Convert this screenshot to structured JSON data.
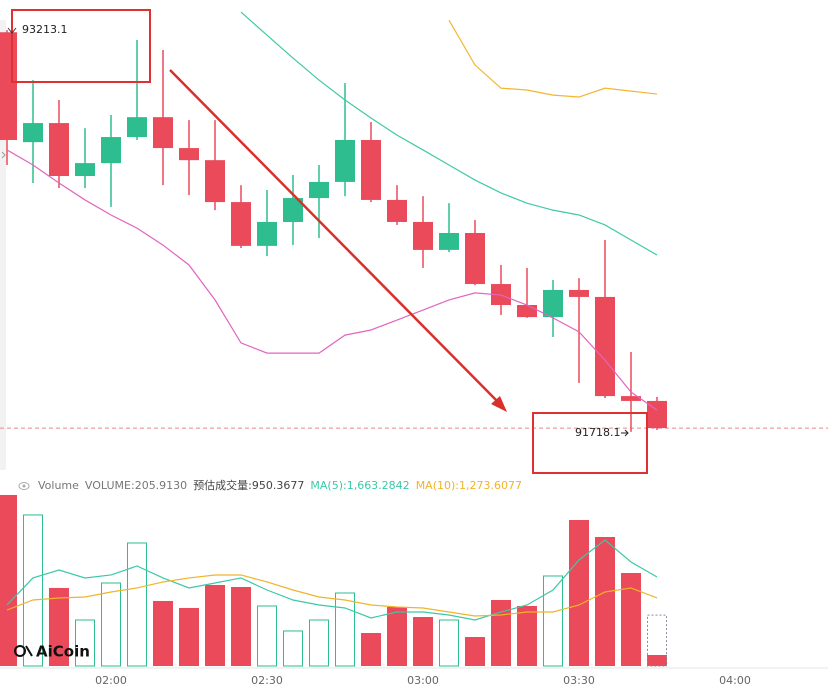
{
  "chart_data": [
    {
      "type": "candlestick",
      "open": [
        93205,
        92796,
        92867,
        92670,
        92718,
        92815,
        92889,
        92774,
        92729,
        92573,
        92410,
        92499,
        92588,
        92648,
        92804,
        92581,
        92499,
        92395,
        92458,
        92268,
        92190,
        92145,
        92246,
        92220,
        91851,
        91833
      ],
      "high": [
        93213.1,
        93027,
        92953,
        92848,
        92897,
        93176,
        93139,
        92878,
        92878,
        92636,
        92618,
        92674,
        92711,
        93016,
        92871,
        92636,
        92595,
        92569,
        92506,
        92339,
        92328,
        92283,
        92290,
        92432,
        92015,
        91848
      ],
      "low": [
        92711,
        92644,
        92625,
        92625,
        92555,
        92804,
        92636,
        92599,
        92543,
        92402,
        92372,
        92413,
        92439,
        92595,
        92573,
        92488,
        92328,
        92387,
        92264,
        92153,
        92142,
        92071,
        91900,
        91844,
        91718.1,
        91725
      ],
      "close": [
        92804,
        92867,
        92670,
        92718,
        92815,
        92889,
        92774,
        92729,
        92573,
        92410,
        92499,
        92588,
        92648,
        92804,
        92581,
        92499,
        92395,
        92458,
        92268,
        92190,
        92145,
        92246,
        92220,
        91851,
        91833,
        91732
      ],
      "up_color": "#2dbd8f",
      "down_color": "#ea4a5a",
      "ylim": [
        91576,
        93325
      ],
      "overlays": [
        {
          "color": "#e265be",
          "values": [
            92767,
            92711,
            92644,
            92581,
            92525,
            92476,
            92413,
            92339,
            92209,
            92049,
            92011,
            92011,
            92011,
            92078,
            92097,
            92134,
            92171,
            92209,
            92235,
            92227,
            92190,
            92142,
            92090,
            91985,
            91866,
            91799
          ]
        },
        {
          "color": "#40c9a6",
          "values": [
            null,
            null,
            null,
            null,
            null,
            null,
            null,
            null,
            null,
            93280,
            93194,
            93109,
            93027,
            92953,
            92886,
            92822,
            92767,
            92711,
            92655,
            92607,
            92569,
            92543,
            92525,
            92488,
            92432,
            92376
          ]
        },
        {
          "color": "#f2b632",
          "values": [
            null,
            null,
            null,
            null,
            null,
            null,
            null,
            null,
            null,
            null,
            null,
            null,
            null,
            null,
            null,
            null,
            null,
            93250,
            93083,
            92997,
            92990,
            92971,
            92964,
            92997,
            92986,
            92975
          ]
        }
      ],
      "last_price": 91732,
      "x_labels": [
        "02:00",
        "02:30",
        "03:00",
        "03:30",
        "04:00"
      ]
    },
    {
      "type": "bar",
      "title": "Volume",
      "series": [
        {
          "name": "VOLUME:205.9130",
          "values": [
            3198,
            2824,
            1459,
            860,
            1552,
            2300,
            1216,
            1085,
            1515,
            1477,
            1122,
            655,
            860,
            1365,
            617,
            1103,
            916,
            860,
            542,
            1234,
            1122,
            1683,
            2730,
            2412,
            1739,
            205.913
          ]
        },
        {
          "name": "MA(5):1,663.2842",
          "color": "#3cc8a8",
          "values": [
            1141,
            1646,
            1795,
            1646,
            1702,
            1870,
            1646,
            1459,
            1552,
            1646,
            1421,
            1234,
            1141,
            1085,
            898,
            1010,
            1010,
            954,
            860,
            1010,
            1141,
            1421,
            1982,
            2356,
            1945,
            1663.2842
          ]
        },
        {
          "name": "MA(10):1,273.6077",
          "color": "#f0b429",
          "values": [
            1047,
            1234,
            1272,
            1290,
            1384,
            1459,
            1571,
            1646,
            1702,
            1702,
            1571,
            1421,
            1290,
            1234,
            1141,
            1103,
            1085,
            1010,
            935,
            954,
            1010,
            1010,
            1141,
            1384,
            1459,
            1273.6077
          ]
        }
      ],
      "estimate": {
        "value": 950.3677,
        "label": "预估成交量:950.3677"
      },
      "ylim": [
        0,
        3272
      ]
    }
  ],
  "watermark": "AiCoin"
}
